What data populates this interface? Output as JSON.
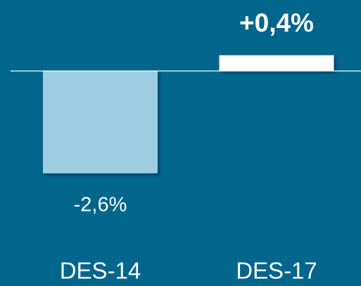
{
  "chart_data": {
    "type": "bar",
    "categories": [
      "DES-14",
      "DES-17"
    ],
    "values": [
      -2.6,
      0.4
    ],
    "value_labels": [
      "-2,6%",
      "+0,4%"
    ],
    "colors": [
      "#9ccde0",
      "#ffffff"
    ],
    "ylim": [
      -3,
      0.5
    ]
  }
}
